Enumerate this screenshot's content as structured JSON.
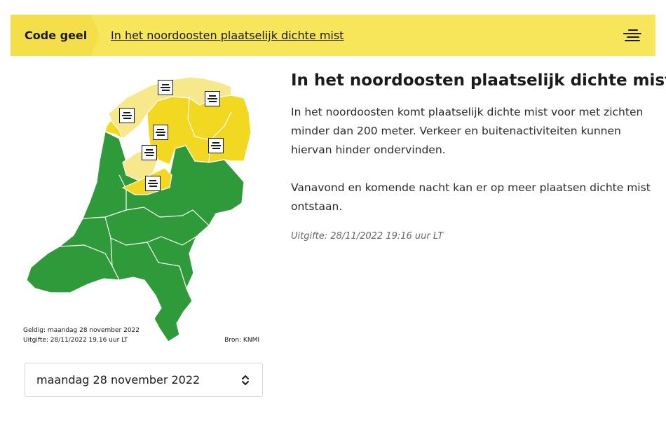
{
  "banner": {
    "code_label": "Code geel",
    "summary_link": "In het noordoosten plaatselijk dichte mist",
    "icon": "fog-icon",
    "color_code": "#f8e65a"
  },
  "map": {
    "valid_text": "Geldig: maandag 28 november 2022",
    "issued_text": "Uitgifte: 28/11/2022 19.16 uur LT",
    "source_text": "Bron: KNMI",
    "colors": {
      "green": "#2e9a3a",
      "yellow": "#f2d820",
      "light_yellow": "#f7e88c"
    }
  },
  "date_select": {
    "value": "maandag 28 november 2022"
  },
  "warning": {
    "title": "In het noordoosten plaatselijk dichte mist",
    "paragraph_1": "In het noordoosten komt plaatselijk dichte mist voor met zichten minder dan 200 meter. Verkeer en buitenactiviteiten kunnen hiervan hinder ondervinden.",
    "paragraph_2": "Vanavond en komende nacht kan er op meer plaatsen dichte mist ontstaan.",
    "issued": "Uitgifte: 28/11/2022 19:16 uur LT"
  }
}
